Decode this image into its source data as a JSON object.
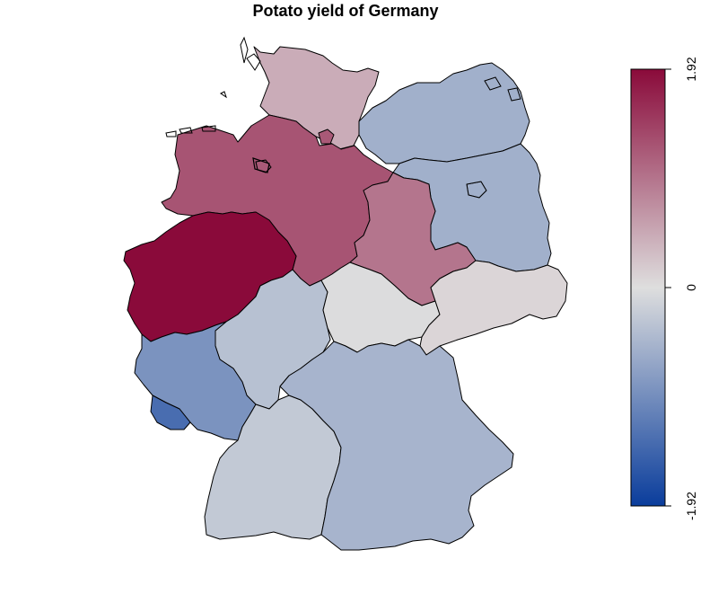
{
  "title": "Potato yield of Germany",
  "legend": {
    "max_label": "1.92",
    "mid_label": "0",
    "min_label": "-1.92",
    "min": -1.92,
    "max": 1.92,
    "colors": {
      "low": "#0a3d9c",
      "mid": "#dedede",
      "high": "#8a0a3a"
    }
  },
  "map_data": {
    "regions": [
      {
        "id": "schleswig-holstein",
        "value": 0.45
      },
      {
        "id": "mecklenburg-vorpommern",
        "value": -0.55
      },
      {
        "id": "hamburg",
        "value": 1.2
      },
      {
        "id": "bremen",
        "value": 1.2
      },
      {
        "id": "niedersachsen",
        "value": 1.25
      },
      {
        "id": "berlin",
        "value": -0.55
      },
      {
        "id": "brandenburg",
        "value": -0.55
      },
      {
        "id": "sachsen-anhalt",
        "value": 0.95
      },
      {
        "id": "nordrhein-westfalen",
        "value": 1.92
      },
      {
        "id": "hessen",
        "value": -0.35
      },
      {
        "id": "thueringen",
        "value": -0.02
      },
      {
        "id": "sachsen",
        "value": 0.08
      },
      {
        "id": "rheinland-pfalz",
        "value": -0.9
      },
      {
        "id": "saarland",
        "value": -1.35
      },
      {
        "id": "baden-wuerttemberg",
        "value": -0.25
      },
      {
        "id": "bayern",
        "value": -0.5
      }
    ]
  }
}
